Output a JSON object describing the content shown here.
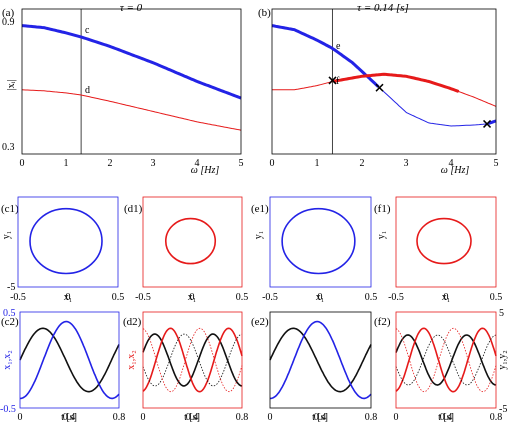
{
  "colors": {
    "blue": "#2323e6",
    "red": "#e61a1a",
    "black": "#111111"
  },
  "top_panels": [
    {
      "label": "(a)",
      "title": "τ = 0",
      "xlabel": "ω [Hz]",
      "ylabel": "|xᵢ|",
      "xticks": [
        "0",
        "1",
        "2",
        "3",
        "4",
        "5"
      ],
      "yticks": [
        {
          "v": 0.9,
          "t": "0.9"
        },
        {
          "v": 0.3,
          "t": "0.3"
        }
      ],
      "annot": [
        "c",
        "d"
      ]
    },
    {
      "label": "(b)",
      "title": "τ = 0.14 [s]",
      "xlabel": "ω [Hz]",
      "xticks": [
        "0",
        "1",
        "2",
        "3",
        "4",
        "5"
      ],
      "annot": [
        "e",
        "f"
      ]
    }
  ],
  "orbit_panels": [
    {
      "label": "(c1)",
      "xlabel": "x₁",
      "ylabel": "y₁",
      "yticks": [
        "5",
        "-5"
      ],
      "xticks": [
        "-0.5",
        "0",
        "0.5"
      ]
    },
    {
      "label": "(d1)",
      "xlabel": "x₁",
      "xticks": [
        "-0.5",
        "0",
        "0.5"
      ]
    },
    {
      "label": "(e1)",
      "xlabel": "x₁",
      "ylabel": "y₁",
      "xticks": [
        "-0.5",
        "0",
        "0.5"
      ]
    },
    {
      "label": "(f1)",
      "xlabel": "x₁",
      "ylabel": "y₁",
      "xticks": [
        "-0.5",
        "0",
        "0.5"
      ]
    }
  ],
  "time_panels": [
    {
      "label": "(c2)",
      "xlabel": "t [s]",
      "ylabel": "x₁,x₂",
      "yticks": [
        "0.5",
        "-0.5"
      ],
      "xticks": [
        "0",
        "0.4",
        "0.8"
      ]
    },
    {
      "label": "(d2)",
      "xlabel": "t [s]",
      "ylabel": "x₁,x₂",
      "xticks": [
        "0",
        "0.4",
        "0.8"
      ]
    },
    {
      "label": "(e2)",
      "xlabel": "t [s]",
      "xticks": [
        "0",
        "0.4",
        "0.8"
      ]
    },
    {
      "label": "(f2)",
      "xlabel": "t [s]",
      "ylabel": "y₁,y₂",
      "yticks": [
        "5",
        "-5"
      ],
      "xticks": [
        "0",
        "0.4",
        "0.8"
      ]
    }
  ],
  "chart_data": [
    {
      "type": "line",
      "panel": "(a)",
      "title": "τ = 0",
      "xlabel": "ω [Hz]",
      "ylabel": "|xᵢ|",
      "xlim": [
        0,
        5
      ],
      "ylim": [
        0.25,
        0.95
      ],
      "vline_x": 1.35,
      "series": [
        {
          "color": "blue",
          "x": [
            0,
            0.5,
            1,
            1.35,
            2,
            2.5,
            3,
            3.5,
            4,
            4.5,
            5
          ],
          "y": [
            0.87,
            0.86,
            0.835,
            0.815,
            0.77,
            0.73,
            0.69,
            0.645,
            0.6,
            0.56,
            0.52
          ]
        },
        {
          "color": "red",
          "x": [
            0,
            0.5,
            1,
            1.35,
            2,
            2.5,
            3,
            3.5,
            4,
            4.5,
            5
          ],
          "y": [
            0.56,
            0.555,
            0.545,
            0.535,
            0.505,
            0.48,
            0.455,
            0.43,
            0.405,
            0.385,
            0.365
          ]
        }
      ]
    },
    {
      "type": "line",
      "panel": "(b)",
      "title": "τ = 0.14 [s]",
      "xlabel": "ω [Hz]",
      "xlim": [
        0,
        5
      ],
      "ylim": [
        0.25,
        0.95
      ],
      "vline_x": 1.35,
      "series": [
        {
          "color": "blue",
          "x": [
            0,
            0.5,
            1,
            1.35,
            1.8,
            2.4,
            3,
            3.5,
            4,
            4.5,
            4.8,
            5
          ],
          "y": [
            0.87,
            0.85,
            0.8,
            0.76,
            0.69,
            0.57,
            0.45,
            0.4,
            0.385,
            0.39,
            0.395,
            0.41
          ],
          "thick_x": [
            [
              0,
              2.4
            ],
            [
              4.8,
              5
            ]
          ]
        },
        {
          "color": "red",
          "x": [
            0,
            0.5,
            1,
            1.35,
            2,
            2.5,
            3,
            3.5,
            4,
            4.5,
            5
          ],
          "y": [
            0.56,
            0.56,
            0.58,
            0.6,
            0.625,
            0.635,
            0.625,
            0.6,
            0.565,
            0.525,
            0.48
          ],
          "thick_x": [
            [
              1.35,
              4.2
            ]
          ]
        }
      ],
      "markers": [
        {
          "x": 1.35,
          "y": 0.605
        },
        {
          "x": 2.4,
          "y": 0.57
        },
        {
          "x": 4.8,
          "y": 0.395
        }
      ]
    },
    {
      "type": "scatter",
      "panel": "(c1)",
      "shape": "closed orbit",
      "color": "blue",
      "xlim": [
        -0.5,
        0.5
      ],
      "ylim": [
        -5,
        5
      ],
      "center": [
        -0.02,
        0.1
      ],
      "radius": [
        0.36,
        3.6
      ]
    },
    {
      "type": "scatter",
      "panel": "(d1)",
      "shape": "closed orbit",
      "color": "red",
      "xlim": [
        -0.5,
        0.5
      ],
      "ylim": [
        -5,
        5
      ],
      "center": [
        -0.02,
        0.1
      ],
      "radius": [
        0.25,
        2.5
      ]
    },
    {
      "type": "scatter",
      "panel": "(e1)",
      "shape": "closed orbit",
      "color": "blue",
      "xlim": [
        -0.5,
        0.5
      ],
      "ylim": [
        -5,
        5
      ],
      "center": [
        -0.02,
        0.1
      ],
      "radius": [
        0.36,
        3.6
      ]
    },
    {
      "type": "scatter",
      "panel": "(f1)",
      "shape": "closed orbit",
      "color": "red",
      "xlim": [
        -0.5,
        0.5
      ],
      "ylim": [
        -5,
        5
      ],
      "center": [
        -0.02,
        0.1
      ],
      "radius": [
        0.27,
        2.5
      ]
    },
    {
      "type": "line",
      "panel": "(c2)",
      "xlabel": "t [s]",
      "ylabel": "x₁,x₂",
      "xlim": [
        0,
        0.8
      ],
      "ylim": [
        -0.5,
        0.5
      ],
      "series": [
        {
          "color": "black",
          "amp": 0.33,
          "period": 0.74,
          "phase": 0.0
        },
        {
          "color": "blue",
          "amp": 0.4,
          "period": 0.74,
          "phase": -1.6
        }
      ]
    },
    {
      "type": "line",
      "panel": "(d2)",
      "xlabel": "t [s]",
      "ylabel": "x₁,x₂",
      "xlim": [
        0,
        0.8
      ],
      "ylim": [
        -0.5,
        0.5
      ],
      "series": [
        {
          "color": "black",
          "amp": 0.27,
          "period": 0.47,
          "phase": 0.3
        },
        {
          "color": "red",
          "amp": 0.33,
          "period": 0.47,
          "phase": -1.4
        },
        {
          "color": "black",
          "amp": 0.27,
          "period": 0.47,
          "phase": 3.4,
          "dotted": true
        },
        {
          "color": "red",
          "amp": 0.33,
          "period": 0.47,
          "phase": 1.7,
          "dotted": true
        }
      ]
    },
    {
      "type": "line",
      "panel": "(e2)",
      "xlabel": "t [s]",
      "xlim": [
        0,
        0.8
      ],
      "ylim": [
        -0.5,
        0.5
      ],
      "series": [
        {
          "color": "black",
          "amp": 0.33,
          "period": 0.74,
          "phase": 0.0
        },
        {
          "color": "blue",
          "amp": 0.4,
          "period": 0.74,
          "phase": -1.6
        }
      ]
    },
    {
      "type": "line",
      "panel": "(f2)",
      "xlabel": "t [s]",
      "ylabel": "y₁,y₂",
      "xlim": [
        0,
        0.8
      ],
      "ylim": [
        -5,
        5
      ],
      "series": [
        {
          "color": "black",
          "amp": 2.6,
          "period": 0.47,
          "phase": 0.3
        },
        {
          "color": "red",
          "amp": 3.3,
          "period": 0.47,
          "phase": -1.4
        },
        {
          "color": "black",
          "amp": 2.6,
          "period": 0.47,
          "phase": 3.4,
          "dotted": true
        },
        {
          "color": "red",
          "amp": 3.3,
          "period": 0.47,
          "phase": 1.7,
          "dotted": true
        }
      ]
    }
  ]
}
